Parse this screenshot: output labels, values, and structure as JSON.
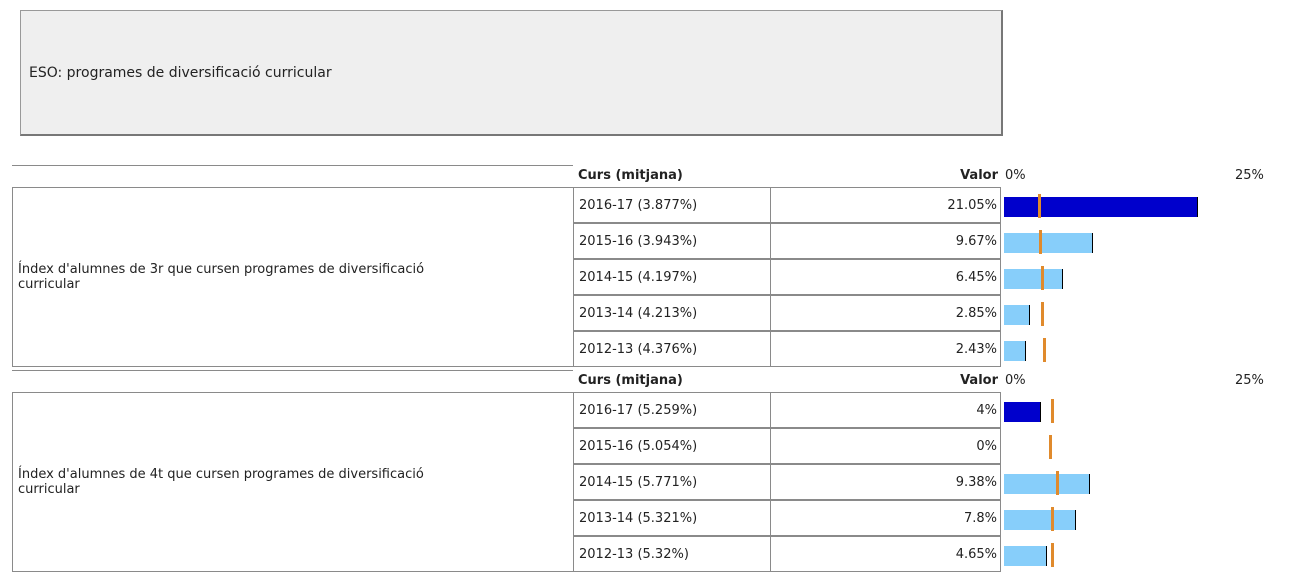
{
  "title": "ESO: programes de diversificació curricular",
  "columns": [
    "Curs (mitjana)",
    "Valor"
  ],
  "xlim": [
    0,
    25
  ],
  "xticks": [
    {
      "value": 0,
      "label": "0%"
    },
    {
      "value": 25,
      "label": "25%"
    }
  ],
  "mean_color": "#e08a2c",
  "sections": [
    {
      "label": "Índex d'alumnes de 3r que cursen programes de diversificació curricular",
      "rows": [
        {
          "course": "2016-17 (3.877%)",
          "mean": 3.877,
          "value": 21.05,
          "value_label": "21.05%",
          "color": "#0000cc"
        },
        {
          "course": "2015-16 (3.943%)",
          "mean": 3.943,
          "value": 9.67,
          "value_label": "9.67%",
          "color": "#87cefa"
        },
        {
          "course": "2014-15 (4.197%)",
          "mean": 4.197,
          "value": 6.45,
          "value_label": "6.45%",
          "color": "#87cefa"
        },
        {
          "course": "2013-14 (4.213%)",
          "mean": 4.213,
          "value": 2.85,
          "value_label": "2.85%",
          "color": "#87cefa"
        },
        {
          "course": "2012-13 (4.376%)",
          "mean": 4.376,
          "value": 2.43,
          "value_label": "2.43%",
          "color": "#87cefa"
        }
      ]
    },
    {
      "label": "Índex d'alumnes de 4t que cursen programes de diversificació curricular",
      "rows": [
        {
          "course": "2016-17 (5.259%)",
          "mean": 5.259,
          "value": 4,
          "value_label": "4%",
          "color": "#0000cc"
        },
        {
          "course": "2015-16 (5.054%)",
          "mean": 5.054,
          "value": 0,
          "value_label": "0%",
          "color": "#87cefa"
        },
        {
          "course": "2014-15 (5.771%)",
          "mean": 5.771,
          "value": 9.38,
          "value_label": "9.38%",
          "color": "#87cefa"
        },
        {
          "course": "2013-14 (5.321%)",
          "mean": 5.321,
          "value": 7.8,
          "value_label": "7.8%",
          "color": "#87cefa"
        },
        {
          "course": "2012-13 (5.32%)",
          "mean": 5.32,
          "value": 4.65,
          "value_label": "4.65%",
          "color": "#87cefa"
        }
      ]
    }
  ]
}
